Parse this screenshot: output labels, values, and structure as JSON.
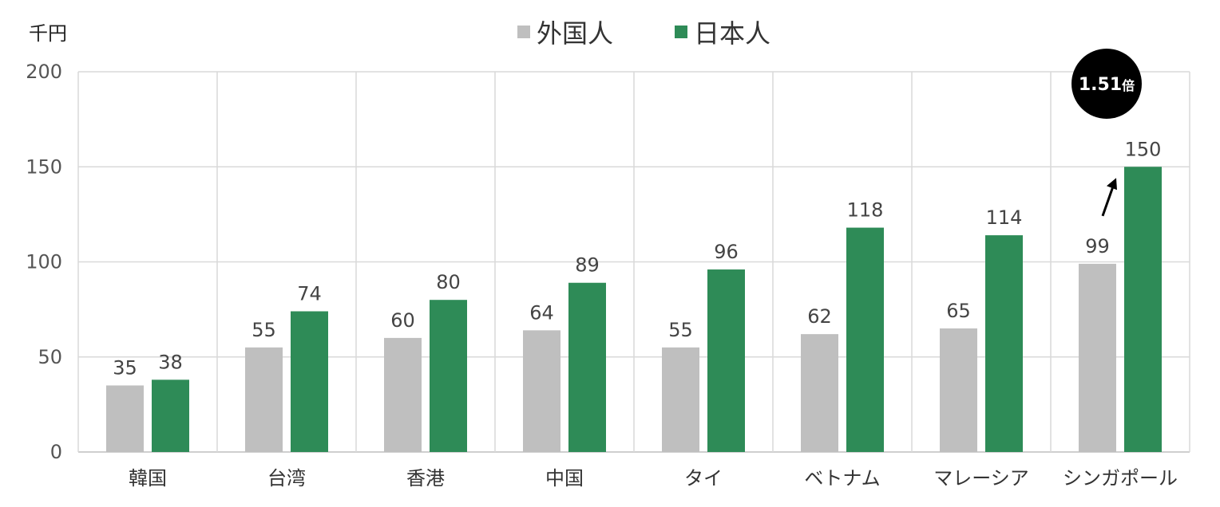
{
  "chart_data": {
    "type": "bar",
    "unit_label": "千円",
    "categories": [
      "韓国",
      "台湾",
      "香港",
      "中国",
      "タイ",
      "ベトナム",
      "マレーシア",
      "シンガポール"
    ],
    "series": [
      {
        "name": "外国人",
        "color": "#bfbfbf",
        "values": [
          35,
          55,
          60,
          64,
          55,
          62,
          65,
          99
        ]
      },
      {
        "name": "日本人",
        "color": "#2e8b57",
        "values": [
          38,
          74,
          80,
          89,
          96,
          118,
          114,
          150
        ]
      }
    ],
    "ylim": [
      0,
      200
    ],
    "yticks": [
      0,
      50,
      100,
      150,
      200
    ],
    "grid": true,
    "legend_position": "top-center",
    "annotation": {
      "category": "シンガポール",
      "value": "1.51",
      "suffix": "倍",
      "badge_color": "#000000"
    }
  }
}
